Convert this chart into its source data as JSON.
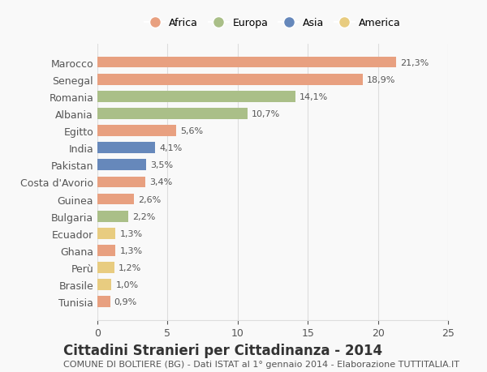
{
  "countries": [
    "Marocco",
    "Senegal",
    "Romania",
    "Albania",
    "Egitto",
    "India",
    "Pakistan",
    "Costa d'Avorio",
    "Guinea",
    "Bulgaria",
    "Ecuador",
    "Ghana",
    "Perù",
    "Brasile",
    "Tunisia"
  ],
  "values": [
    21.3,
    18.9,
    14.1,
    10.7,
    5.6,
    4.1,
    3.5,
    3.4,
    2.6,
    2.2,
    1.3,
    1.3,
    1.2,
    1.0,
    0.9
  ],
  "labels": [
    "21,3%",
    "18,9%",
    "14,1%",
    "10,7%",
    "5,6%",
    "4,1%",
    "3,5%",
    "3,4%",
    "2,6%",
    "2,2%",
    "1,3%",
    "1,3%",
    "1,2%",
    "1,0%",
    "0,9%"
  ],
  "continents": [
    "Africa",
    "Africa",
    "Europa",
    "Europa",
    "Africa",
    "Asia",
    "Asia",
    "Africa",
    "Africa",
    "Europa",
    "America",
    "Africa",
    "America",
    "America",
    "Africa"
  ],
  "continent_colors": {
    "Africa": "#E8A080",
    "Europa": "#AABF88",
    "Asia": "#6688BB",
    "America": "#E8CC80"
  },
  "legend_order": [
    "Africa",
    "Europa",
    "Asia",
    "America"
  ],
  "title": "Cittadini Stranieri per Cittadinanza - 2014",
  "subtitle": "COMUNE DI BOLTIERE (BG) - Dati ISTAT al 1° gennaio 2014 - Elaborazione TUTTITALIA.IT",
  "xlim": [
    0,
    25
  ],
  "xticks": [
    0,
    5,
    10,
    15,
    20,
    25
  ],
  "background_color": "#f9f9f9",
  "grid_color": "#dddddd",
  "title_fontsize": 12,
  "subtitle_fontsize": 8,
  "label_fontsize": 8
}
